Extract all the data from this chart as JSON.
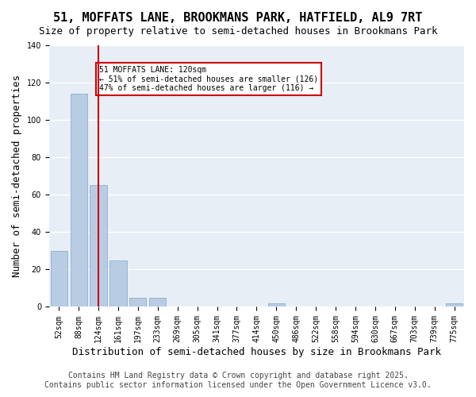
{
  "title": "51, MOFFATS LANE, BROOKMANS PARK, HATFIELD, AL9 7RT",
  "subtitle": "Size of property relative to semi-detached houses in Brookmans Park",
  "xlabel": "Distribution of semi-detached houses by size in Brookmans Park",
  "ylabel": "Number of semi-detached properties",
  "categories": [
    "52sqm",
    "88sqm",
    "124sqm",
    "161sqm",
    "197sqm",
    "233sqm",
    "269sqm",
    "305sqm",
    "341sqm",
    "377sqm",
    "414sqm",
    "450sqm",
    "486sqm",
    "522sqm",
    "558sqm",
    "594sqm",
    "630sqm",
    "667sqm",
    "703sqm",
    "739sqm",
    "775sqm"
  ],
  "values": [
    30,
    114,
    65,
    25,
    5,
    5,
    0,
    0,
    0,
    0,
    0,
    2,
    0,
    0,
    0,
    0,
    0,
    0,
    0,
    0,
    2
  ],
  "bar_color": "#b8cce4",
  "bar_edge_color": "#7fa8cc",
  "vline_x_index": 2,
  "vline_color": "#cc0000",
  "ylim": [
    0,
    140
  ],
  "yticks": [
    0,
    20,
    40,
    60,
    80,
    100,
    120,
    140
  ],
  "annotation_title": "51 MOFFATS LANE: 120sqm",
  "annotation_line1": "← 51% of semi-detached houses are smaller (126)",
  "annotation_line2": "47% of semi-detached houses are larger (116) →",
  "annotation_box_color": "#ffffff",
  "annotation_box_edge": "#cc0000",
  "background_color": "#e8eef6",
  "grid_color": "#ffffff",
  "footer_line1": "Contains HM Land Registry data © Crown copyright and database right 2025.",
  "footer_line2": "Contains public sector information licensed under the Open Government Licence v3.0.",
  "title_fontsize": 11,
  "subtitle_fontsize": 9,
  "xlabel_fontsize": 9,
  "ylabel_fontsize": 9,
  "tick_fontsize": 7,
  "footer_fontsize": 7
}
